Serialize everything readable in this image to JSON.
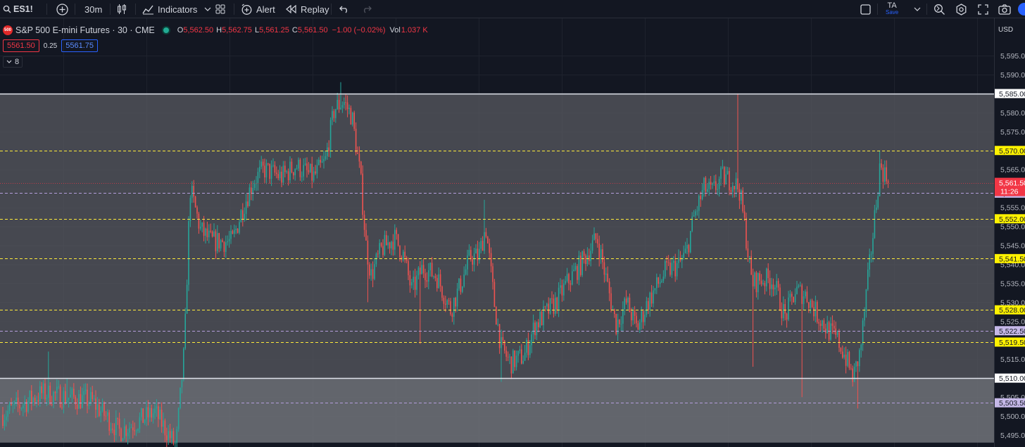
{
  "toolbar": {
    "symbol": "ES1!",
    "interval": "30m",
    "indicators_label": "Indicators",
    "alert_label": "Alert",
    "replay_label": "Replay",
    "layout_name": "TA",
    "save_label": "Save"
  },
  "legend": {
    "title": "S&P 500 E-mini Futures · 30 · CME",
    "logo_text": "500",
    "o_key": "O",
    "o_val": "5,562.50",
    "h_key": "H",
    "h_val": "5,562.75",
    "l_key": "L",
    "l_val": "5,561.25",
    "c_key": "C",
    "c_val": "5,561.50",
    "change": "−1.00 (−0.02%)",
    "vol_key": "Vol",
    "vol_val": "1.037 K",
    "sell_price": "5561.50",
    "spread": "0.25",
    "buy_price": "5561.75",
    "indicator_count": "8"
  },
  "price_axis": {
    "currency": "USD",
    "ticks": [
      "5,595.00",
      "5,590.00",
      "5,585.00",
      "5,580.00",
      "5,575.00",
      "5,570.00",
      "5,565.00",
      "5,560.00",
      "5,555.00",
      "5,550.00",
      "5,545.00",
      "5,540.00",
      "5,535.00",
      "5,530.00",
      "5,525.00",
      "5,520.00",
      "5,515.00",
      "5,510.00",
      "5,505.00",
      "5,500.00",
      "5,495.00"
    ],
    "current_price_label": "5,561.50",
    "countdown": "11:26"
  },
  "colors": {
    "background": "#131722",
    "up": "#26a69a",
    "down": "#ef5350",
    "yellow_level": "#ffeb3b",
    "lavender_level": "#b39ddb",
    "zone": "#5a5c63",
    "zone_lower": "#74767c"
  },
  "chart_data": {
    "type": "candlestick",
    "symbol": "ES1!",
    "interval": "30",
    "y_range": [
      5493,
      5598
    ],
    "zones": [
      {
        "from": 5510,
        "to": 5585
      },
      {
        "from": 5493,
        "to": 5510
      }
    ],
    "levels": [
      {
        "price": 5585,
        "label": "5,585.00",
        "style": "solid",
        "color": "#ffffff"
      },
      {
        "price": 5570,
        "label": "5,570.00",
        "style": "dashed",
        "color": "#ffeb3b"
      },
      {
        "price": 5558.75,
        "label": "5,558.75",
        "style": "dashed",
        "color": "#b39ddb"
      },
      {
        "price": 5552,
        "label": "5,552.00",
        "style": "dashed",
        "color": "#ffeb3b"
      },
      {
        "price": 5541.5,
        "label": "5,541.50",
        "style": "dashed",
        "color": "#ffeb3b"
      },
      {
        "price": 5528,
        "label": "5,528.00",
        "style": "dashed",
        "color": "#ffeb3b"
      },
      {
        "price": 5522.5,
        "label": "5,522.50",
        "style": "dashed",
        "color": "#b39ddb"
      },
      {
        "price": 5519.5,
        "label": "5,519.50",
        "style": "dashed",
        "color": "#ffeb3b"
      },
      {
        "price": 5510,
        "label": "5,510.00",
        "style": "solid",
        "color": "#ffffff"
      },
      {
        "price": 5503.5,
        "label": "5,503.50",
        "style": "dashed",
        "color": "#b39ddb"
      }
    ],
    "current_price": 5561.5,
    "path_anchors": [
      [
        0,
        5500
      ],
      [
        60,
        5506
      ],
      [
        130,
        5504
      ],
      [
        170,
        5496
      ],
      [
        220,
        5501
      ],
      [
        250,
        5492
      ],
      [
        262,
        5518
      ],
      [
        270,
        5560
      ],
      [
        285,
        5549
      ],
      [
        300,
        5546
      ],
      [
        330,
        5546
      ],
      [
        345,
        5555
      ],
      [
        360,
        5562
      ],
      [
        375,
        5565
      ],
      [
        400,
        5563
      ],
      [
        420,
        5566
      ],
      [
        445,
        5563
      ],
      [
        462,
        5567
      ],
      [
        475,
        5581
      ],
      [
        488,
        5583
      ],
      [
        500,
        5579
      ],
      [
        512,
        5563
      ],
      [
        520,
        5545
      ],
      [
        527,
        5537
      ],
      [
        542,
        5544
      ],
      [
        560,
        5547
      ],
      [
        572,
        5543
      ],
      [
        585,
        5533
      ],
      [
        600,
        5539
      ],
      [
        620,
        5537
      ],
      [
        640,
        5528
      ],
      [
        655,
        5535
      ],
      [
        668,
        5542
      ],
      [
        680,
        5542
      ],
      [
        690,
        5550
      ],
      [
        702,
        5530
      ],
      [
        712,
        5518
      ],
      [
        725,
        5514
      ],
      [
        745,
        5516
      ],
      [
        760,
        5524
      ],
      [
        790,
        5530
      ],
      [
        805,
        5535
      ],
      [
        825,
        5540
      ],
      [
        848,
        5547
      ],
      [
        860,
        5537
      ],
      [
        875,
        5524
      ],
      [
        890,
        5530
      ],
      [
        905,
        5523
      ],
      [
        920,
        5530
      ],
      [
        945,
        5538
      ],
      [
        965,
        5540
      ],
      [
        975,
        5543
      ],
      [
        985,
        5552
      ],
      [
        1000,
        5560
      ],
      [
        1012,
        5559
      ],
      [
        1025,
        5563
      ],
      [
        1040,
        5562
      ],
      [
        1050,
        5560
      ],
      [
        1058,
        5550
      ],
      [
        1068,
        5535
      ],
      [
        1080,
        5536
      ],
      [
        1098,
        5536
      ],
      [
        1115,
        5526
      ],
      [
        1130,
        5533
      ],
      [
        1145,
        5532
      ],
      [
        1160,
        5527
      ],
      [
        1175,
        5523
      ],
      [
        1190,
        5520
      ],
      [
        1200,
        5516
      ],
      [
        1212,
        5510
      ],
      [
        1222,
        5517
      ],
      [
        1230,
        5531
      ],
      [
        1240,
        5548
      ],
      [
        1250,
        5566
      ],
      [
        1262,
        5562
      ]
    ],
    "spikes": [
      [
        68,
        5517
      ],
      [
        95,
        5510
      ],
      [
        483,
        5588
      ],
      [
        523,
        5530
      ],
      [
        597,
        5519
      ],
      [
        688,
        5557
      ],
      [
        712,
        5509
      ],
      [
        1048,
        5585
      ],
      [
        1070,
        5513
      ],
      [
        1140,
        5505
      ],
      [
        1218,
        5502
      ],
      [
        1250,
        5570
      ]
    ]
  }
}
